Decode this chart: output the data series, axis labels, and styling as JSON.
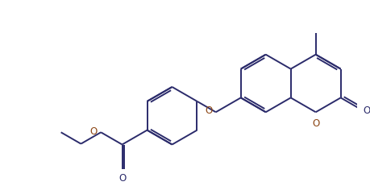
{
  "background_color": "#ffffff",
  "line_color": "#2b2b6b",
  "line_width": 1.4,
  "figsize": [
    4.6,
    2.31
  ],
  "dpi": 100,
  "xlim": [
    0,
    10.5
  ],
  "ylim": [
    0,
    5.0
  ]
}
